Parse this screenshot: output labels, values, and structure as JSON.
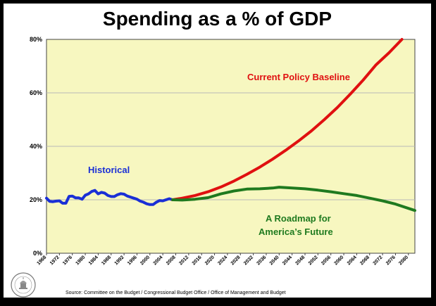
{
  "chart_data": {
    "type": "line",
    "title": "Spending as a % of GDP",
    "xlabel": "",
    "ylabel": "",
    "xlim": [
      1968,
      2082
    ],
    "ylim": [
      0,
      80
    ],
    "y_ticks": [
      "0%",
      "20%",
      "40%",
      "60%",
      "80%"
    ],
    "x_ticks": [
      "1968",
      "1972",
      "1976",
      "1980",
      "1984",
      "1988",
      "1992",
      "1996",
      "2000",
      "2004",
      "2008",
      "2012",
      "2016",
      "2020",
      "2024",
      "2028",
      "2032",
      "2036",
      "2040",
      "2044",
      "2048",
      "2052",
      "2056",
      "2060",
      "2064",
      "2068",
      "2072",
      "2076",
      "2080"
    ],
    "grid": true,
    "series": [
      {
        "name": "Historical",
        "color": "#1a2fd6",
        "points": [
          [
            1968,
            20.6
          ],
          [
            1969,
            19.4
          ],
          [
            1970,
            19.3
          ],
          [
            1971,
            19.5
          ],
          [
            1972,
            19.6
          ],
          [
            1973,
            18.7
          ],
          [
            1974,
            18.7
          ],
          [
            1975,
            21.3
          ],
          [
            1976,
            21.4
          ],
          [
            1977,
            20.7
          ],
          [
            1978,
            20.7
          ],
          [
            1979,
            20.2
          ],
          [
            1980,
            21.7
          ],
          [
            1981,
            22.2
          ],
          [
            1982,
            23.1
          ],
          [
            1983,
            23.5
          ],
          [
            1984,
            22.2
          ],
          [
            1985,
            22.8
          ],
          [
            1986,
            22.5
          ],
          [
            1987,
            21.6
          ],
          [
            1988,
            21.2
          ],
          [
            1989,
            21.2
          ],
          [
            1990,
            21.9
          ],
          [
            1991,
            22.3
          ],
          [
            1992,
            22.1
          ],
          [
            1993,
            21.4
          ],
          [
            1994,
            21.0
          ],
          [
            1995,
            20.6
          ],
          [
            1996,
            20.2
          ],
          [
            1997,
            19.5
          ],
          [
            1998,
            19.1
          ],
          [
            1999,
            18.5
          ],
          [
            2000,
            18.2
          ],
          [
            2001,
            18.2
          ],
          [
            2002,
            19.1
          ],
          [
            2003,
            19.7
          ],
          [
            2004,
            19.6
          ],
          [
            2005,
            20.0
          ],
          [
            2006,
            20.4
          ],
          [
            2007,
            20.0
          ]
        ]
      },
      {
        "name": "Current Policy Baseline",
        "color": "#e01010",
        "points": [
          [
            2007,
            20.0
          ],
          [
            2010,
            20.6
          ],
          [
            2014,
            21.6
          ],
          [
            2018,
            23.0
          ],
          [
            2022,
            24.8
          ],
          [
            2026,
            27.0
          ],
          [
            2030,
            29.5
          ],
          [
            2034,
            32.2
          ],
          [
            2038,
            35.2
          ],
          [
            2042,
            38.5
          ],
          [
            2046,
            42.0
          ],
          [
            2050,
            45.8
          ],
          [
            2054,
            50.0
          ],
          [
            2058,
            54.5
          ],
          [
            2062,
            59.5
          ],
          [
            2066,
            64.8
          ],
          [
            2070,
            70.5
          ],
          [
            2074,
            75.0
          ],
          [
            2078,
            80.0
          ]
        ]
      },
      {
        "name": "A Roadmap for America's Future",
        "color": "#1f7a1f",
        "points": [
          [
            2007,
            20.0
          ],
          [
            2010,
            19.9
          ],
          [
            2014,
            20.2
          ],
          [
            2018,
            20.8
          ],
          [
            2022,
            22.2
          ],
          [
            2026,
            23.3
          ],
          [
            2030,
            24.0
          ],
          [
            2034,
            24.1
          ],
          [
            2038,
            24.4
          ],
          [
            2040,
            24.7
          ],
          [
            2044,
            24.4
          ],
          [
            2048,
            24.1
          ],
          [
            2052,
            23.6
          ],
          [
            2056,
            23.0
          ],
          [
            2060,
            22.3
          ],
          [
            2064,
            21.6
          ],
          [
            2068,
            20.6
          ],
          [
            2072,
            19.6
          ],
          [
            2076,
            18.4
          ],
          [
            2080,
            16.8
          ],
          [
            2082,
            16.0
          ]
        ]
      }
    ],
    "annotations": {
      "historical": "Historical",
      "baseline": "Current Policy Baseline",
      "roadmap_line1": "A Roadmap for",
      "roadmap_line2": "America’s Future"
    },
    "colors": {
      "plot_background": "#f7f7c0",
      "grid": "#b8b8b8",
      "historical": "#1a2fd6",
      "baseline": "#e01010",
      "roadmap": "#1f7a1f"
    }
  },
  "source_note": "Source:  Committee on the Budget / Congressional Budget Office / Office  of Management and Budget",
  "seal_text": "BUDGET COMMITTEE"
}
